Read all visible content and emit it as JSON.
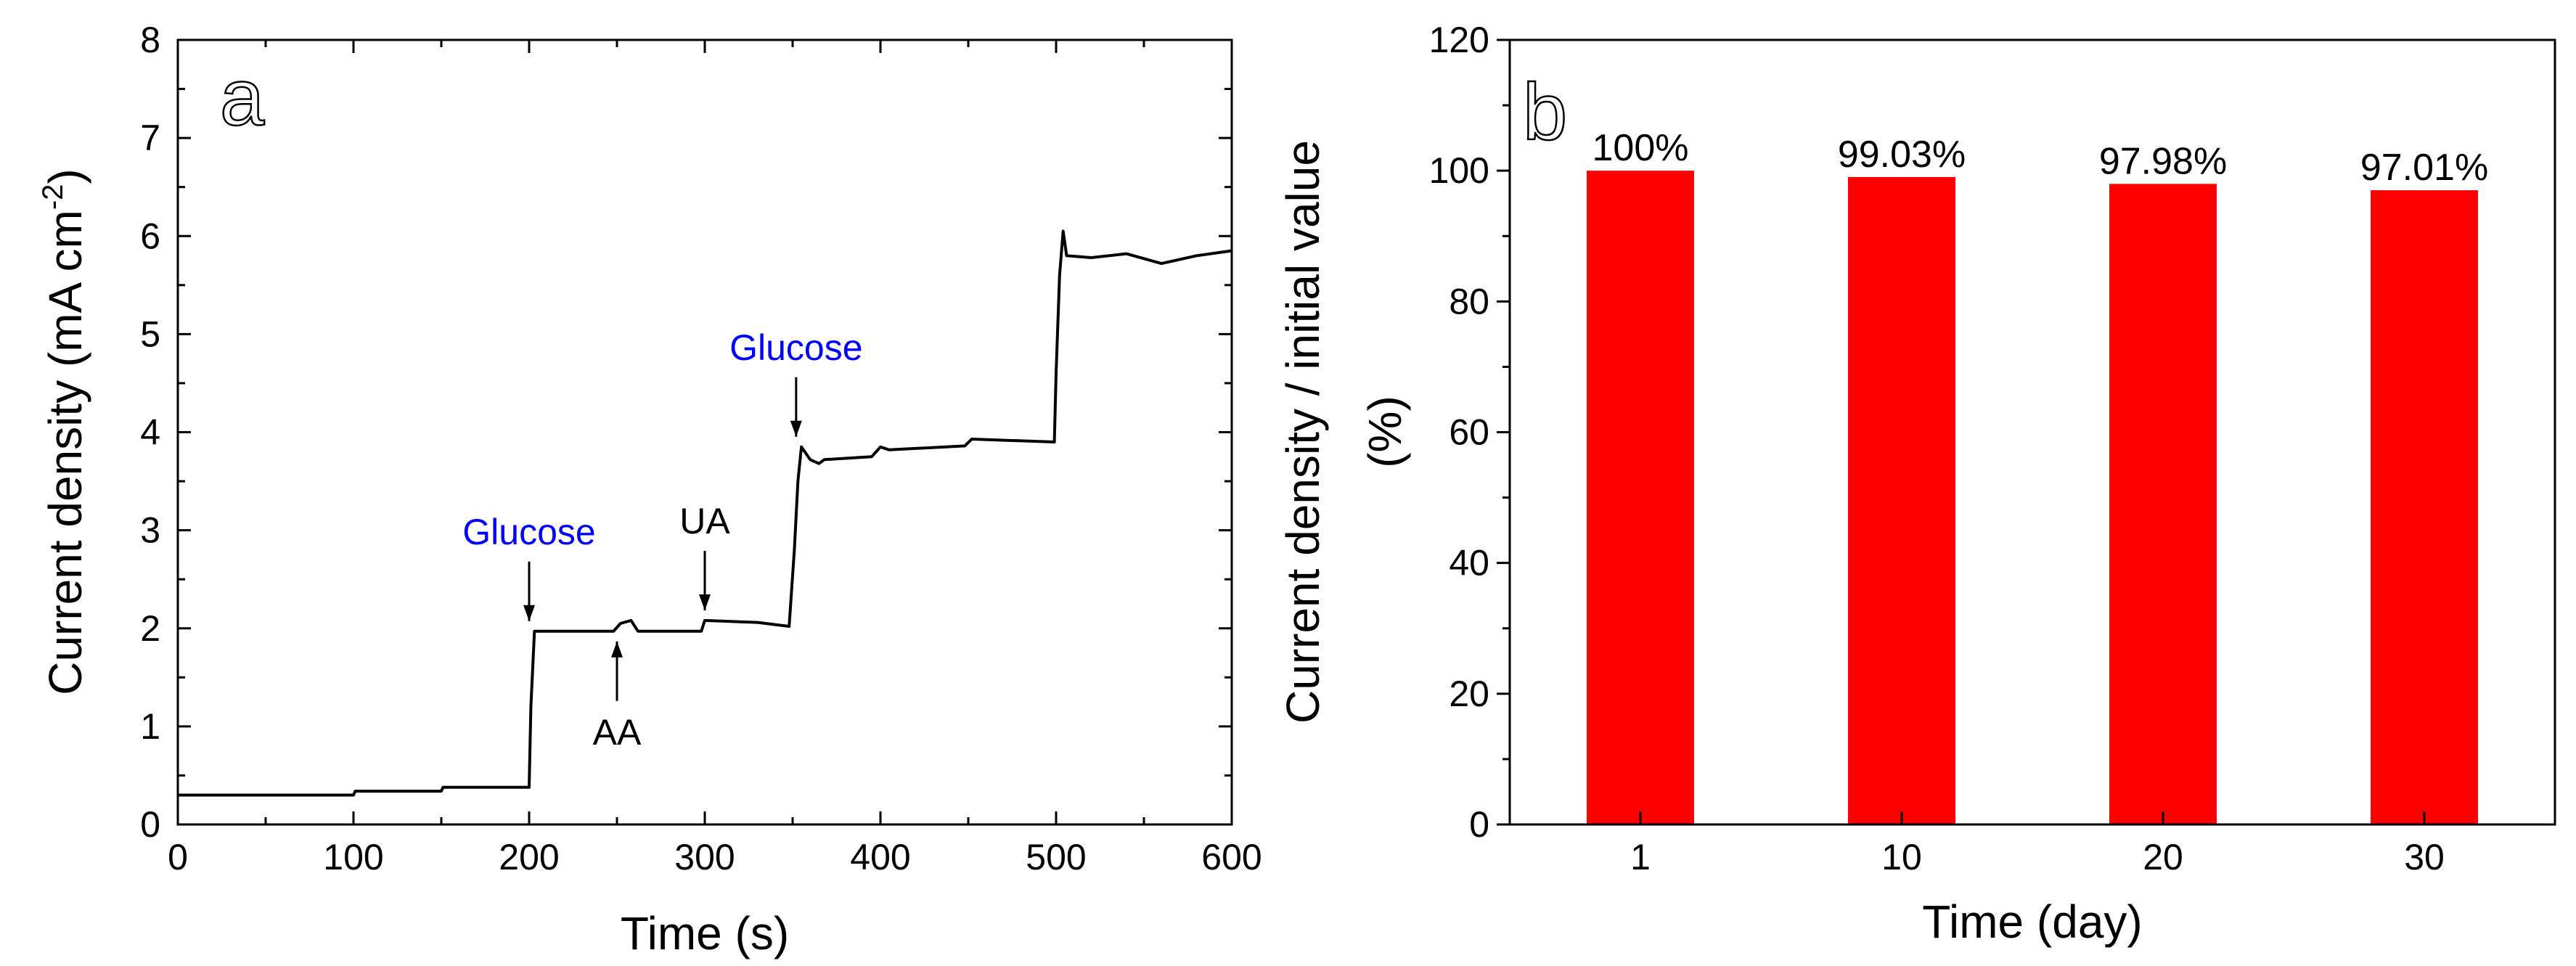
{
  "chart_data": [
    {
      "type": "line",
      "panel_label": "a",
      "title": "",
      "xlabel": "Time (s)",
      "ylabel": "Current density (mA cm",
      "ylabel_sup": "-2",
      "ylabel_close": ")",
      "xlim": [
        0,
        600
      ],
      "ylim": [
        0,
        8
      ],
      "xticks": [
        "0",
        "100",
        "200",
        "300",
        "400",
        "500",
        "600"
      ],
      "yticks": [
        "0",
        "1",
        "2",
        "3",
        "4",
        "5",
        "6",
        "7",
        "8"
      ],
      "grid": false,
      "series": [
        {
          "name": "Current density",
          "color": "#000000",
          "x": [
            0,
            100,
            101,
            150,
            151,
            200,
            201,
            203,
            248,
            252,
            258,
            262,
            298,
            300,
            330,
            348,
            351,
            353,
            355,
            360,
            365,
            368,
            395,
            400,
            405,
            448,
            452,
            499,
            500,
            502,
            504,
            506,
            520,
            540,
            560,
            580,
            600
          ],
          "values": [
            0.3,
            0.3,
            0.34,
            0.34,
            0.38,
            0.38,
            1.2,
            1.97,
            1.97,
            2.05,
            2.08,
            1.97,
            1.97,
            2.08,
            2.06,
            2.02,
            2.8,
            3.5,
            3.85,
            3.72,
            3.68,
            3.72,
            3.75,
            3.85,
            3.82,
            3.86,
            3.93,
            3.9,
            4.6,
            5.6,
            6.05,
            5.8,
            5.78,
            5.82,
            5.72,
            5.8,
            5.85
          ]
        }
      ],
      "annotations": [
        {
          "text": "Glucose",
          "x": 200,
          "y": 1.97,
          "color": "#0000ff",
          "position": "above"
        },
        {
          "text": "AA",
          "x": 250,
          "y": 1.97,
          "color": "#000000",
          "position": "below"
        },
        {
          "text": "UA",
          "x": 300,
          "y": 2.08,
          "color": "#000000",
          "position": "above"
        },
        {
          "text": "Glucose",
          "x": 352,
          "y": 3.85,
          "color": "#0000ff",
          "position": "above"
        }
      ]
    },
    {
      "type": "bar",
      "panel_label": "b",
      "title": "",
      "xlabel": "Time (day)",
      "ylabel_line1": "Current density / initial value",
      "ylabel_line2": "(%)",
      "categories": [
        "1",
        "10",
        "20",
        "30"
      ],
      "values": [
        100,
        99.03,
        97.98,
        97.01
      ],
      "data_labels": [
        "100%",
        "99.03%",
        "97.98%",
        "97.01%"
      ],
      "bar_color": "#ff0000",
      "ylim": [
        0,
        120
      ],
      "yticks": [
        "0",
        "20",
        "40",
        "60",
        "80",
        "100",
        "120"
      ],
      "grid": false
    }
  ]
}
